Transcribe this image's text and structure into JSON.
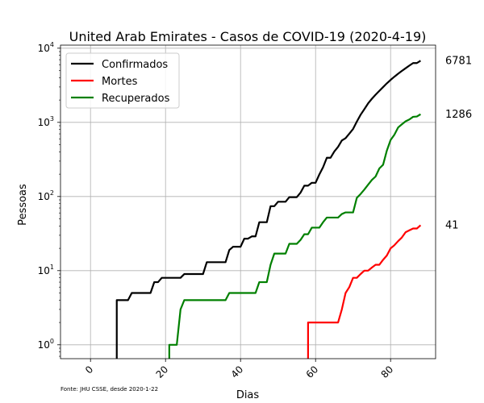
{
  "chart_data": {
    "type": "line",
    "title": "United Arab Emirates - Casos de COVID-19 (2020-4-19)",
    "xlabel": "Dias",
    "ylabel": "Pessoas",
    "yscale": "log",
    "xlim": [
      -8,
      92
    ],
    "ylim": [
      0.65,
      11000
    ],
    "xticks": [
      0,
      20,
      40,
      60,
      80
    ],
    "xticklabels": [
      "0",
      "20",
      "40",
      "60",
      "80"
    ],
    "yticks": [
      1,
      10,
      100,
      1000,
      10000
    ],
    "yticklabels": [
      "10^0",
      "10^1",
      "10^2",
      "10^3",
      "10^4"
    ],
    "grid": true,
    "legend_position": "top-left",
    "series": [
      {
        "name": "Confirmados",
        "color": "#000000",
        "end_label": "6781",
        "start_x": 7,
        "values": [
          4,
          4,
          4,
          4,
          5,
          5,
          5,
          5,
          5,
          5,
          7,
          7,
          8,
          8,
          8,
          8,
          8,
          8,
          9,
          9,
          9,
          9,
          9,
          9,
          13,
          13,
          13,
          13,
          13,
          13,
          19,
          21,
          21,
          21,
          27,
          27,
          29,
          29,
          45,
          45,
          45,
          74,
          74,
          85,
          85,
          85,
          98,
          98,
          98,
          113,
          140,
          140,
          153,
          153,
          198,
          248,
          333,
          333,
          405,
          468,
          570,
          611,
          705,
          814,
          1024,
          1264,
          1505,
          1799,
          2076,
          2359,
          2659,
          2990,
          3360,
          3736,
          4123,
          4521,
          4933,
          5365,
          5825,
          6302,
          6302,
          6781
        ]
      },
      {
        "name": "Mortes",
        "color": "#ff0000",
        "end_label": "41",
        "start_x": 58,
        "values": [
          2,
          2,
          2,
          2,
          2,
          2,
          2,
          2,
          2,
          3,
          5,
          6,
          8,
          8,
          9,
          10,
          10,
          11,
          12,
          12,
          14,
          16,
          20,
          22,
          25,
          28,
          33,
          35,
          37,
          37,
          41
        ]
      },
      {
        "name": "Recuperados",
        "color": "#008000",
        "end_label": "1286",
        "start_x": 21,
        "values": [
          1,
          1,
          1,
          3,
          4,
          4,
          4,
          4,
          4,
          4,
          4,
          4,
          4,
          4,
          4,
          4,
          5,
          5,
          5,
          5,
          5,
          5,
          5,
          5,
          7,
          7,
          7,
          12,
          17,
          17,
          17,
          17,
          23,
          23,
          23,
          26,
          31,
          31,
          38,
          38,
          38,
          45,
          52,
          52,
          52,
          52,
          58,
          61,
          61,
          61,
          96,
          108,
          124,
          144,
          167,
          186,
          239,
          268,
          416,
          577,
          680,
          852,
          941,
          1034,
          1093,
          1188,
          1198,
          1286
        ]
      }
    ],
    "source_note": "Fonte: JHU CSSE, desde 2020-1-22"
  }
}
